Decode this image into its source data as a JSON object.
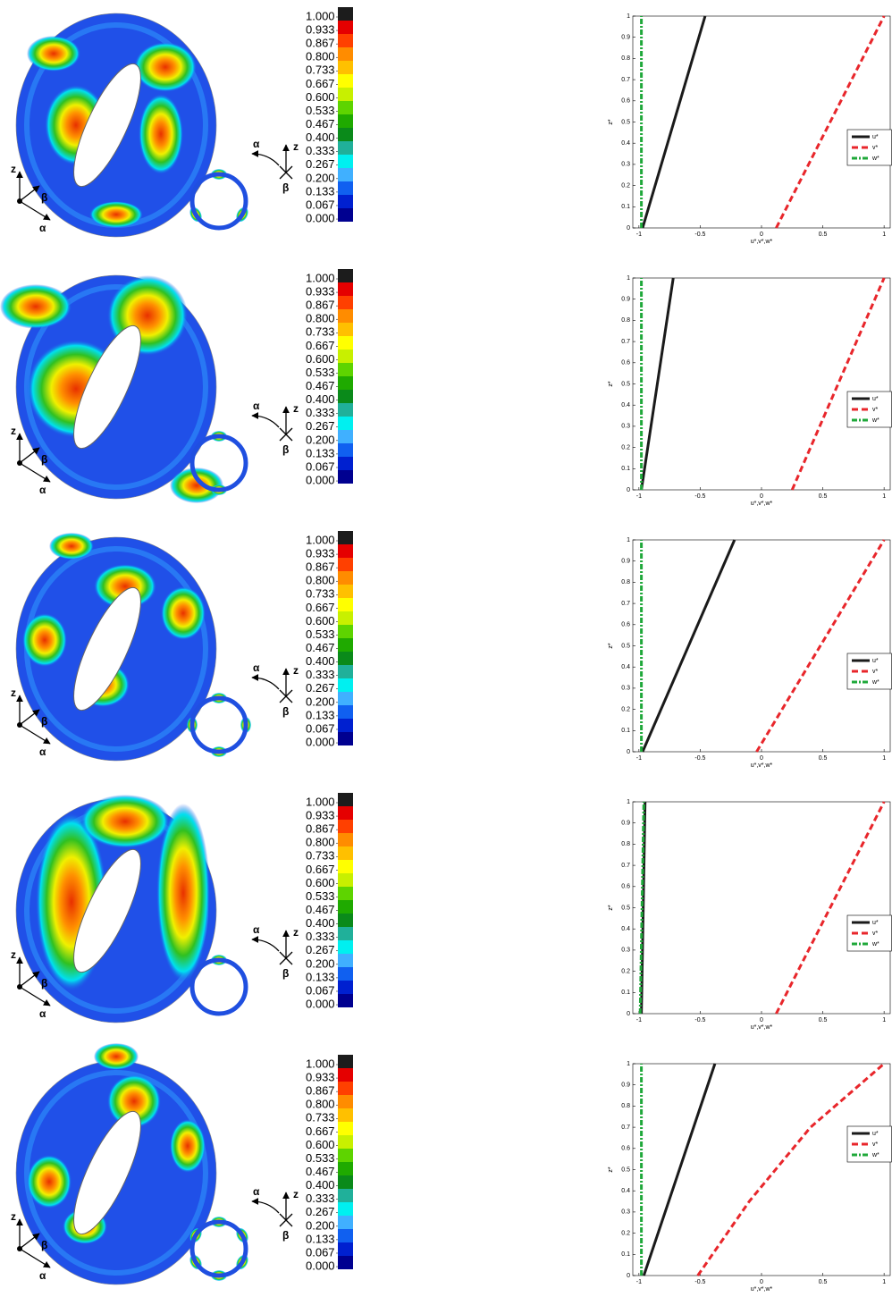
{
  "colorbar": {
    "ticks": [
      {
        "value": 1,
        "label": "1.000"
      },
      {
        "value": 0.933,
        "label": "0.933"
      },
      {
        "value": 0.867,
        "label": "0.867"
      },
      {
        "value": 0.8,
        "label": "0.800"
      },
      {
        "value": 0.733,
        "label": "0.733"
      },
      {
        "value": 0.667,
        "label": "0.667"
      },
      {
        "value": 0.6,
        "label": "0.600"
      },
      {
        "value": 0.533,
        "label": "0.533"
      },
      {
        "value": 0.467,
        "label": "0.467"
      },
      {
        "value": 0.4,
        "label": "0.400"
      },
      {
        "value": 0.333,
        "label": "0.333"
      },
      {
        "value": 0.267,
        "label": "0.267"
      },
      {
        "value": 0.2,
        "label": "0.200"
      },
      {
        "value": 0.133,
        "label": "0.133"
      },
      {
        "value": 0.067,
        "label": "0.067"
      },
      {
        "value": 0,
        "label": "0.000"
      }
    ],
    "colors": [
      "#1c1c1c",
      "#e50000",
      "#ff4000",
      "#ff8c00",
      "#ffc000",
      "#ffff00",
      "#c8f000",
      "#5ed400",
      "#1faa00",
      "#0a8a1a",
      "#20b09a",
      "#00f0f0",
      "#40b0ff",
      "#1060f0",
      "#0020d0",
      "#000090"
    ]
  },
  "triad": {
    "z": "z",
    "beta": "β",
    "alpha": "α"
  },
  "chart_data": [
    {
      "type": "line",
      "xlabel": "u*,v*,w*",
      "ylabel": "z*",
      "xlim": [
        -1.05,
        1.05
      ],
      "ylim": [
        0,
        1
      ],
      "xticks": [
        -1,
        -0.5,
        0,
        0.5,
        1
      ],
      "yticks": [
        0,
        0.1,
        0.2,
        0.3,
        0.4,
        0.5,
        0.6,
        0.7,
        0.8,
        0.9,
        1
      ],
      "legend": "center right",
      "series": [
        {
          "name": "u*",
          "color": "#1a1a1a",
          "style": "solid",
          "x": [
            -0.97,
            -0.46
          ],
          "values": [
            0,
            1
          ]
        },
        {
          "name": "v*",
          "color": "#e8262b",
          "style": "dashed",
          "x": [
            0.12,
            1
          ],
          "values": [
            0,
            1
          ]
        },
        {
          "name": "w*",
          "color": "#1fa83a",
          "style": "dashdot",
          "x": [
            -0.98,
            -0.98
          ],
          "values": [
            0,
            1
          ]
        }
      ]
    },
    {
      "type": "line",
      "xlabel": "u*,v*,w*",
      "ylabel": "z*",
      "xlim": [
        -1.05,
        1.05
      ],
      "ylim": [
        0,
        1
      ],
      "xticks": [
        -1,
        -0.5,
        0,
        0.5,
        1
      ],
      "yticks": [
        0,
        0.1,
        0.2,
        0.3,
        0.4,
        0.5,
        0.6,
        0.7,
        0.8,
        0.9,
        1
      ],
      "legend": "center right",
      "series": [
        {
          "name": "u*",
          "color": "#1a1a1a",
          "style": "solid",
          "x": [
            -0.98,
            -0.72
          ],
          "values": [
            0,
            1
          ]
        },
        {
          "name": "v*",
          "color": "#e8262b",
          "style": "dashed",
          "x": [
            0.25,
            1
          ],
          "values": [
            0,
            1
          ]
        },
        {
          "name": "w*",
          "color": "#1fa83a",
          "style": "dashdot",
          "x": [
            -0.98,
            -0.98
          ],
          "values": [
            0,
            1
          ]
        }
      ]
    },
    {
      "type": "line",
      "xlabel": "u*,v*,w*",
      "ylabel": "z*",
      "xlim": [
        -1.05,
        1.05
      ],
      "ylim": [
        0,
        1
      ],
      "xticks": [
        -1,
        -0.5,
        0,
        0.5,
        1
      ],
      "yticks": [
        0,
        0.1,
        0.2,
        0.3,
        0.4,
        0.5,
        0.6,
        0.7,
        0.8,
        0.9,
        1
      ],
      "legend": "center right",
      "series": [
        {
          "name": "u*",
          "color": "#1a1a1a",
          "style": "solid",
          "x": [
            -0.97,
            -0.22
          ],
          "values": [
            0,
            1
          ]
        },
        {
          "name": "v*",
          "color": "#e8262b",
          "style": "dashed",
          "x": [
            -0.04,
            1
          ],
          "values": [
            0,
            1
          ]
        },
        {
          "name": "w*",
          "color": "#1fa83a",
          "style": "dashdot",
          "x": [
            -0.98,
            -0.98
          ],
          "values": [
            0,
            1
          ]
        }
      ]
    },
    {
      "type": "line",
      "xlabel": "u*,v*,w*",
      "ylabel": "z*",
      "xlim": [
        -1.05,
        1.05
      ],
      "ylim": [
        0,
        1
      ],
      "xticks": [
        -1,
        -0.5,
        0,
        0.5,
        1
      ],
      "yticks": [
        0,
        0.1,
        0.2,
        0.3,
        0.4,
        0.5,
        0.6,
        0.7,
        0.8,
        0.9,
        1
      ],
      "legend": "center right",
      "series": [
        {
          "name": "u*",
          "color": "#1a1a1a",
          "style": "solid",
          "x": [
            -0.98,
            -0.95
          ],
          "values": [
            0,
            1
          ]
        },
        {
          "name": "v*",
          "color": "#e8262b",
          "style": "dashed",
          "x": [
            0.12,
            1
          ],
          "values": [
            0,
            1
          ]
        },
        {
          "name": "w*",
          "color": "#1fa83a",
          "style": "dashdot",
          "x": [
            -0.99,
            -0.96
          ],
          "values": [
            0,
            1
          ]
        }
      ]
    },
    {
      "type": "line",
      "xlabel": "u*,v*,w*",
      "ylabel": "z*",
      "xlim": [
        -1.05,
        1.05
      ],
      "ylim": [
        0,
        1
      ],
      "xticks": [
        -1,
        -0.5,
        0,
        0.5,
        1
      ],
      "yticks": [
        0,
        0.1,
        0.2,
        0.3,
        0.4,
        0.5,
        0.6,
        0.7,
        0.8,
        0.9,
        1
      ],
      "legend": "upper right",
      "series": [
        {
          "name": "u*",
          "color": "#1a1a1a",
          "style": "solid",
          "x": [
            -0.96,
            -0.38
          ],
          "values": [
            0,
            1
          ]
        },
        {
          "name": "v*",
          "color": "#e8262b",
          "style": "dashed",
          "x": [
            -0.52,
            -0.1,
            0.4,
            1
          ],
          "values": [
            0,
            0.35,
            0.7,
            1
          ]
        },
        {
          "name": "w*",
          "color": "#1fa83a",
          "style": "dashdot",
          "x": [
            -0.98,
            -0.98
          ],
          "values": [
            0,
            1
          ]
        }
      ]
    }
  ]
}
